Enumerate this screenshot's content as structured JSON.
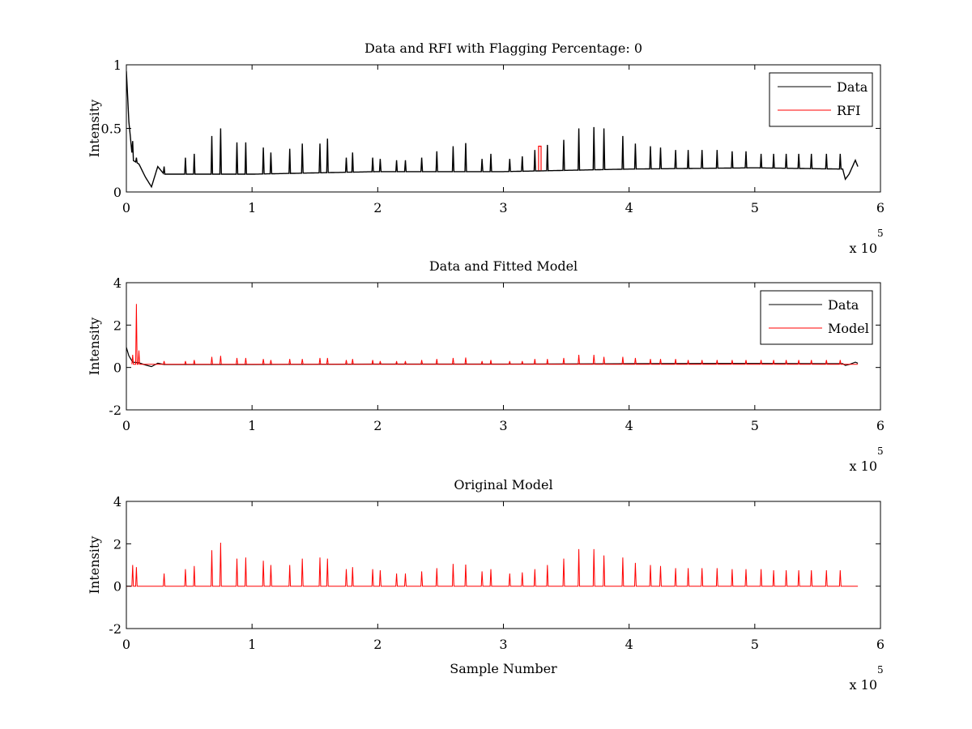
{
  "colors": {
    "data": "#000000",
    "rfi": "#ff0000",
    "model": "#ff0000",
    "background": "#ffffff"
  },
  "chart_data": [
    {
      "type": "line",
      "title": "Data and RFI with Flagging Percentage: 0",
      "xlabel": "",
      "ylabel": "Intensity",
      "xlim": [
        0,
        6
      ],
      "ylim": [
        0,
        1
      ],
      "x_ticks": [
        0,
        1,
        2,
        3,
        4,
        5,
        6
      ],
      "y_ticks": [
        0,
        0.5,
        1
      ],
      "x_exponent_base": "x 10",
      "x_exponent": "5",
      "legend": {
        "location": "top-right",
        "entries": [
          "Data",
          "RFI"
        ]
      },
      "baseline": {
        "x": [
          0.0,
          0.02,
          0.05,
          0.1,
          0.15,
          0.2,
          0.25,
          0.3,
          0.5,
          1.0,
          2.0,
          3.0,
          4.0,
          5.0,
          5.7,
          5.72,
          5.75,
          5.8,
          5.82
        ],
        "y": [
          0.95,
          0.55,
          0.25,
          0.22,
          0.12,
          0.04,
          0.2,
          0.14,
          0.14,
          0.14,
          0.16,
          0.16,
          0.18,
          0.19,
          0.18,
          0.1,
          0.14,
          0.25,
          0.2
        ]
      },
      "spikes_x": [
        0.05,
        0.08,
        0.3,
        0.47,
        0.54,
        0.68,
        0.75,
        0.88,
        0.95,
        1.09,
        1.15,
        1.3,
        1.4,
        1.54,
        1.6,
        1.75,
        1.8,
        1.96,
        2.02,
        2.15,
        2.22,
        2.35,
        2.47,
        2.6,
        2.7,
        2.83,
        2.9,
        3.05,
        3.15,
        3.25,
        3.35,
        3.48,
        3.6,
        3.72,
        3.8,
        3.95,
        4.05,
        4.17,
        4.25,
        4.37,
        4.47,
        4.58,
        4.7,
        4.82,
        4.93,
        5.05,
        5.15,
        5.25,
        5.35,
        5.45,
        5.57,
        5.68
      ],
      "spikes_y": [
        0.4,
        0.27,
        0.2,
        0.27,
        0.3,
        0.44,
        0.5,
        0.39,
        0.39,
        0.35,
        0.31,
        0.34,
        0.38,
        0.38,
        0.42,
        0.27,
        0.31,
        0.27,
        0.26,
        0.25,
        0.25,
        0.27,
        0.32,
        0.36,
        0.38,
        0.26,
        0.3,
        0.26,
        0.28,
        0.33,
        0.37,
        0.41,
        0.5,
        0.51,
        0.5,
        0.44,
        0.38,
        0.36,
        0.35,
        0.33,
        0.33,
        0.33,
        0.33,
        0.32,
        0.32,
        0.3,
        0.3,
        0.3,
        0.3,
        0.3,
        0.3,
        0.3
      ],
      "series": [
        {
          "name": "Data",
          "color": "#000000"
        },
        {
          "name": "RFI",
          "color": "#ff0000",
          "x": [
            3.28,
            3.28,
            3.3,
            3.3
          ],
          "y": [
            0.17,
            0.36,
            0.36,
            0.17
          ]
        }
      ]
    },
    {
      "type": "line",
      "title": "Data and Fitted Model",
      "xlabel": "",
      "ylabel": "Intensity",
      "xlim": [
        0,
        6
      ],
      "ylim": [
        -2,
        4
      ],
      "x_ticks": [
        0,
        1,
        2,
        3,
        4,
        5,
        6
      ],
      "y_ticks": [
        -2,
        0,
        2,
        4
      ],
      "x_exponent_base": "x 10",
      "x_exponent": "5",
      "legend": {
        "location": "top-right",
        "entries": [
          "Data",
          "Model"
        ]
      },
      "series": [
        {
          "name": "Data",
          "color": "#000000",
          "x": [
            0.0,
            0.02,
            0.05,
            0.1,
            0.15,
            0.2,
            0.25,
            0.3,
            0.5,
            1.0,
            2.0,
            3.0,
            4.0,
            5.0,
            5.7,
            5.72,
            5.75,
            5.8,
            5.82
          ],
          "y": [
            0.95,
            0.55,
            0.25,
            0.22,
            0.12,
            0.04,
            0.2,
            0.14,
            0.14,
            0.14,
            0.16,
            0.16,
            0.18,
            0.19,
            0.18,
            0.1,
            0.14,
            0.25,
            0.2
          ]
        },
        {
          "name": "Model",
          "color": "#ff0000",
          "baseline_y": 0.15,
          "spikes_x": [
            0.05,
            0.08,
            0.1,
            0.3,
            0.47,
            0.54,
            0.68,
            0.75,
            0.88,
            0.95,
            1.09,
            1.15,
            1.3,
            1.4,
            1.54,
            1.6,
            1.75,
            1.8,
            1.96,
            2.02,
            2.15,
            2.22,
            2.35,
            2.47,
            2.6,
            2.7,
            2.83,
            2.9,
            3.05,
            3.15,
            3.25,
            3.35,
            3.48,
            3.6,
            3.72,
            3.8,
            3.95,
            4.05,
            4.17,
            4.25,
            4.37,
            4.47,
            4.58,
            4.7,
            4.82,
            4.93,
            5.05,
            5.15,
            5.25,
            5.35,
            5.45,
            5.57,
            5.68
          ],
          "spikes_y": [
            0.6,
            3.0,
            0.8,
            0.3,
            0.3,
            0.35,
            0.5,
            0.55,
            0.45,
            0.45,
            0.4,
            0.35,
            0.4,
            0.4,
            0.45,
            0.45,
            0.35,
            0.4,
            0.35,
            0.3,
            0.3,
            0.3,
            0.35,
            0.4,
            0.45,
            0.45,
            0.3,
            0.35,
            0.3,
            0.3,
            0.4,
            0.4,
            0.45,
            0.6,
            0.6,
            0.5,
            0.5,
            0.45,
            0.4,
            0.4,
            0.4,
            0.35,
            0.35,
            0.35,
            0.35,
            0.35,
            0.35,
            0.35,
            0.35,
            0.35,
            0.35,
            0.35,
            0.35
          ]
        }
      ]
    },
    {
      "type": "line",
      "title": "Original Model",
      "xlabel": "Sample Number",
      "ylabel": "Intensity",
      "xlim": [
        0,
        6
      ],
      "ylim": [
        -2,
        4
      ],
      "x_ticks": [
        0,
        1,
        2,
        3,
        4,
        5,
        6
      ],
      "y_ticks": [
        -2,
        0,
        2,
        4
      ],
      "x_exponent_base": "x 10",
      "x_exponent": "5",
      "series": [
        {
          "name": "",
          "color": "#ff0000",
          "x_range": [
            0,
            5.82
          ],
          "baseline_y": 0,
          "spikes_x": [
            0.05,
            0.08,
            0.3,
            0.47,
            0.54,
            0.68,
            0.75,
            0.88,
            0.95,
            1.09,
            1.15,
            1.3,
            1.4,
            1.54,
            1.6,
            1.75,
            1.8,
            1.96,
            2.02,
            2.15,
            2.22,
            2.35,
            2.47,
            2.6,
            2.7,
            2.83,
            2.9,
            3.05,
            3.15,
            3.25,
            3.35,
            3.48,
            3.6,
            3.72,
            3.8,
            3.95,
            4.05,
            4.17,
            4.25,
            4.37,
            4.47,
            4.58,
            4.7,
            4.82,
            4.93,
            5.05,
            5.15,
            5.25,
            5.35,
            5.45,
            5.57,
            5.68
          ],
          "spikes_y": [
            1.0,
            0.9,
            0.6,
            0.8,
            0.95,
            1.7,
            2.05,
            1.3,
            1.35,
            1.2,
            1.0,
            1.0,
            1.3,
            1.35,
            1.3,
            0.8,
            0.9,
            0.8,
            0.75,
            0.6,
            0.6,
            0.7,
            0.85,
            1.05,
            1.0,
            0.7,
            0.8,
            0.6,
            0.65,
            0.8,
            1.0,
            1.3,
            1.75,
            1.75,
            1.45,
            1.35,
            1.1,
            1.0,
            0.95,
            0.85,
            0.85,
            0.85,
            0.85,
            0.8,
            0.8,
            0.8,
            0.75,
            0.75,
            0.75,
            0.75,
            0.75,
            0.75
          ]
        }
      ]
    }
  ]
}
